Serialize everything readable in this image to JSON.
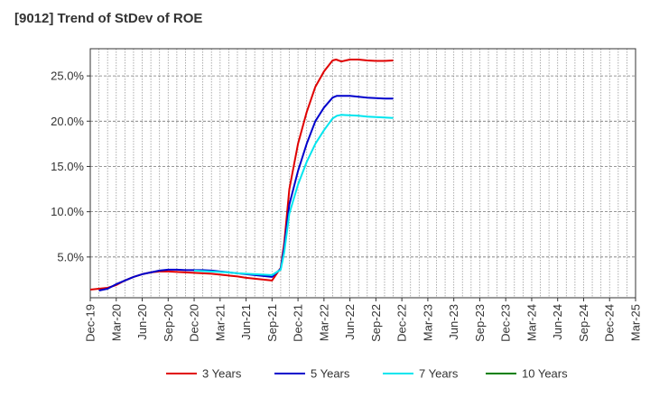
{
  "title": "[9012]  Trend of StDev of ROE",
  "chart_data": {
    "type": "line",
    "title": "[9012]  Trend of StDev of ROE",
    "x_tick_labels": [
      "Dec-19",
      "Mar-20",
      "Jun-20",
      "Sep-20",
      "Dec-20",
      "Mar-21",
      "Jun-21",
      "Sep-21",
      "Dec-21",
      "Mar-22",
      "Jun-22",
      "Sep-22",
      "Dec-22",
      "Mar-23",
      "Jun-23",
      "Sep-23",
      "Dec-23",
      "Mar-24",
      "Jun-24",
      "Sep-24",
      "Dec-24",
      "Mar-25"
    ],
    "y_ticks": [
      5.0,
      10.0,
      15.0,
      20.0,
      25.0
    ],
    "y_tick_labels": [
      "5.0%",
      "10.0%",
      "15.0%",
      "20.0%",
      "25.0%"
    ],
    "ylim": [
      0.5,
      28.0
    ],
    "grid": true,
    "legend_position": "bottom",
    "series": [
      {
        "name": "3 Years",
        "color": "#e00000",
        "points": [
          [
            0,
            1.4
          ],
          [
            1,
            1.5
          ],
          [
            2,
            1.6
          ],
          [
            3,
            1.9
          ],
          [
            4,
            2.4
          ],
          [
            5,
            2.8
          ],
          [
            6,
            3.1
          ],
          [
            7,
            3.3
          ],
          [
            8,
            3.4
          ],
          [
            9,
            3.4
          ],
          [
            10,
            3.35
          ],
          [
            11,
            3.3
          ],
          [
            12,
            3.25
          ],
          [
            13,
            3.2
          ],
          [
            14,
            3.15
          ],
          [
            15,
            3.05
          ],
          [
            16,
            2.95
          ],
          [
            17,
            2.85
          ],
          [
            18,
            2.7
          ],
          [
            19,
            2.6
          ],
          [
            20,
            2.5
          ],
          [
            21,
            2.4
          ],
          [
            22,
            3.8
          ],
          [
            22.4,
            6.5
          ],
          [
            23,
            12.5
          ],
          [
            24,
            17.5
          ],
          [
            25,
            21.0
          ],
          [
            26,
            23.8
          ],
          [
            27,
            25.5
          ],
          [
            28,
            26.7
          ],
          [
            28.4,
            26.8
          ],
          [
            29,
            26.6
          ],
          [
            30,
            26.8
          ],
          [
            31,
            26.8
          ],
          [
            32,
            26.7
          ],
          [
            33,
            26.65
          ],
          [
            34,
            26.65
          ],
          [
            35,
            26.7
          ]
        ]
      },
      {
        "name": "5 Years",
        "color": "#0000cc",
        "points": [
          [
            1,
            1.3
          ],
          [
            2,
            1.5
          ],
          [
            3,
            2.0
          ],
          [
            4,
            2.4
          ],
          [
            5,
            2.8
          ],
          [
            6,
            3.1
          ],
          [
            7,
            3.3
          ],
          [
            8,
            3.5
          ],
          [
            9,
            3.6
          ],
          [
            10,
            3.6
          ],
          [
            11,
            3.55
          ],
          [
            12,
            3.55
          ],
          [
            13,
            3.55
          ],
          [
            14,
            3.5
          ],
          [
            15,
            3.4
          ],
          [
            16,
            3.3
          ],
          [
            17,
            3.2
          ],
          [
            18,
            3.1
          ],
          [
            19,
            3.0
          ],
          [
            20,
            2.9
          ],
          [
            21,
            2.8
          ],
          [
            22,
            3.7
          ],
          [
            22.4,
            6.0
          ],
          [
            23,
            10.8
          ],
          [
            24,
            14.5
          ],
          [
            25,
            17.5
          ],
          [
            26,
            20.0
          ],
          [
            27,
            21.5
          ],
          [
            28,
            22.6
          ],
          [
            28.5,
            22.8
          ],
          [
            29,
            22.8
          ],
          [
            30,
            22.8
          ],
          [
            31,
            22.7
          ],
          [
            32,
            22.6
          ],
          [
            33,
            22.55
          ],
          [
            34,
            22.5
          ],
          [
            35,
            22.5
          ]
        ]
      },
      {
        "name": "7 Years",
        "color": "#00e5ee",
        "points": [
          [
            12,
            3.5
          ],
          [
            13,
            3.45
          ],
          [
            14,
            3.4
          ],
          [
            15,
            3.35
          ],
          [
            16,
            3.3
          ],
          [
            17,
            3.2
          ],
          [
            18,
            3.15
          ],
          [
            19,
            3.1
          ],
          [
            20,
            3.05
          ],
          [
            21,
            3.0
          ],
          [
            22,
            3.6
          ],
          [
            22.4,
            5.5
          ],
          [
            23,
            9.8
          ],
          [
            24,
            13.0
          ],
          [
            25,
            15.5
          ],
          [
            26,
            17.5
          ],
          [
            27,
            19.0
          ],
          [
            28,
            20.3
          ],
          [
            28.5,
            20.6
          ],
          [
            29,
            20.7
          ],
          [
            30,
            20.65
          ],
          [
            31,
            20.6
          ],
          [
            32,
            20.5
          ],
          [
            33,
            20.45
          ],
          [
            34,
            20.4
          ],
          [
            35,
            20.35
          ]
        ]
      },
      {
        "name": "10 Years",
        "color": "#008000",
        "points": []
      }
    ]
  }
}
